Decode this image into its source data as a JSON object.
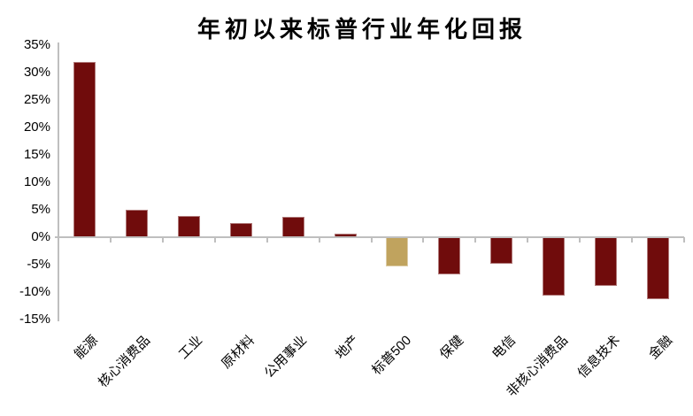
{
  "chart_data": {
    "type": "bar",
    "title": "年初以来标普行业年化回报",
    "categories": [
      "能源",
      "核心消费品",
      "工业",
      "原材料",
      "公用事业",
      "地产",
      "标普500",
      "保健",
      "电信",
      "非核心消费品",
      "信息技术",
      "金融"
    ],
    "values": [
      32,
      5,
      3.8,
      2.6,
      3.7,
      0.7,
      -5.3,
      -6.8,
      -4.8,
      -10.7,
      -8.8,
      -11.3
    ],
    "unit": "%",
    "highlight_category": "标普500",
    "ylim": [
      -15,
      35
    ],
    "y_ticks": [
      35,
      30,
      25,
      20,
      15,
      10,
      5,
      0,
      -5,
      -10,
      -15
    ],
    "y_tick_labels": [
      "35%",
      "30%",
      "25%",
      "20%",
      "15%",
      "10%",
      "5%",
      "0%",
      "-5%",
      "-10%",
      "-15%"
    ],
    "xlabel": "",
    "ylabel": "",
    "grid": false,
    "legend": false,
    "colors": {
      "bar": "#700C0C",
      "bar_highlight": "#C0A35E",
      "axis": "#BFBFBF",
      "text": "#000000"
    }
  }
}
